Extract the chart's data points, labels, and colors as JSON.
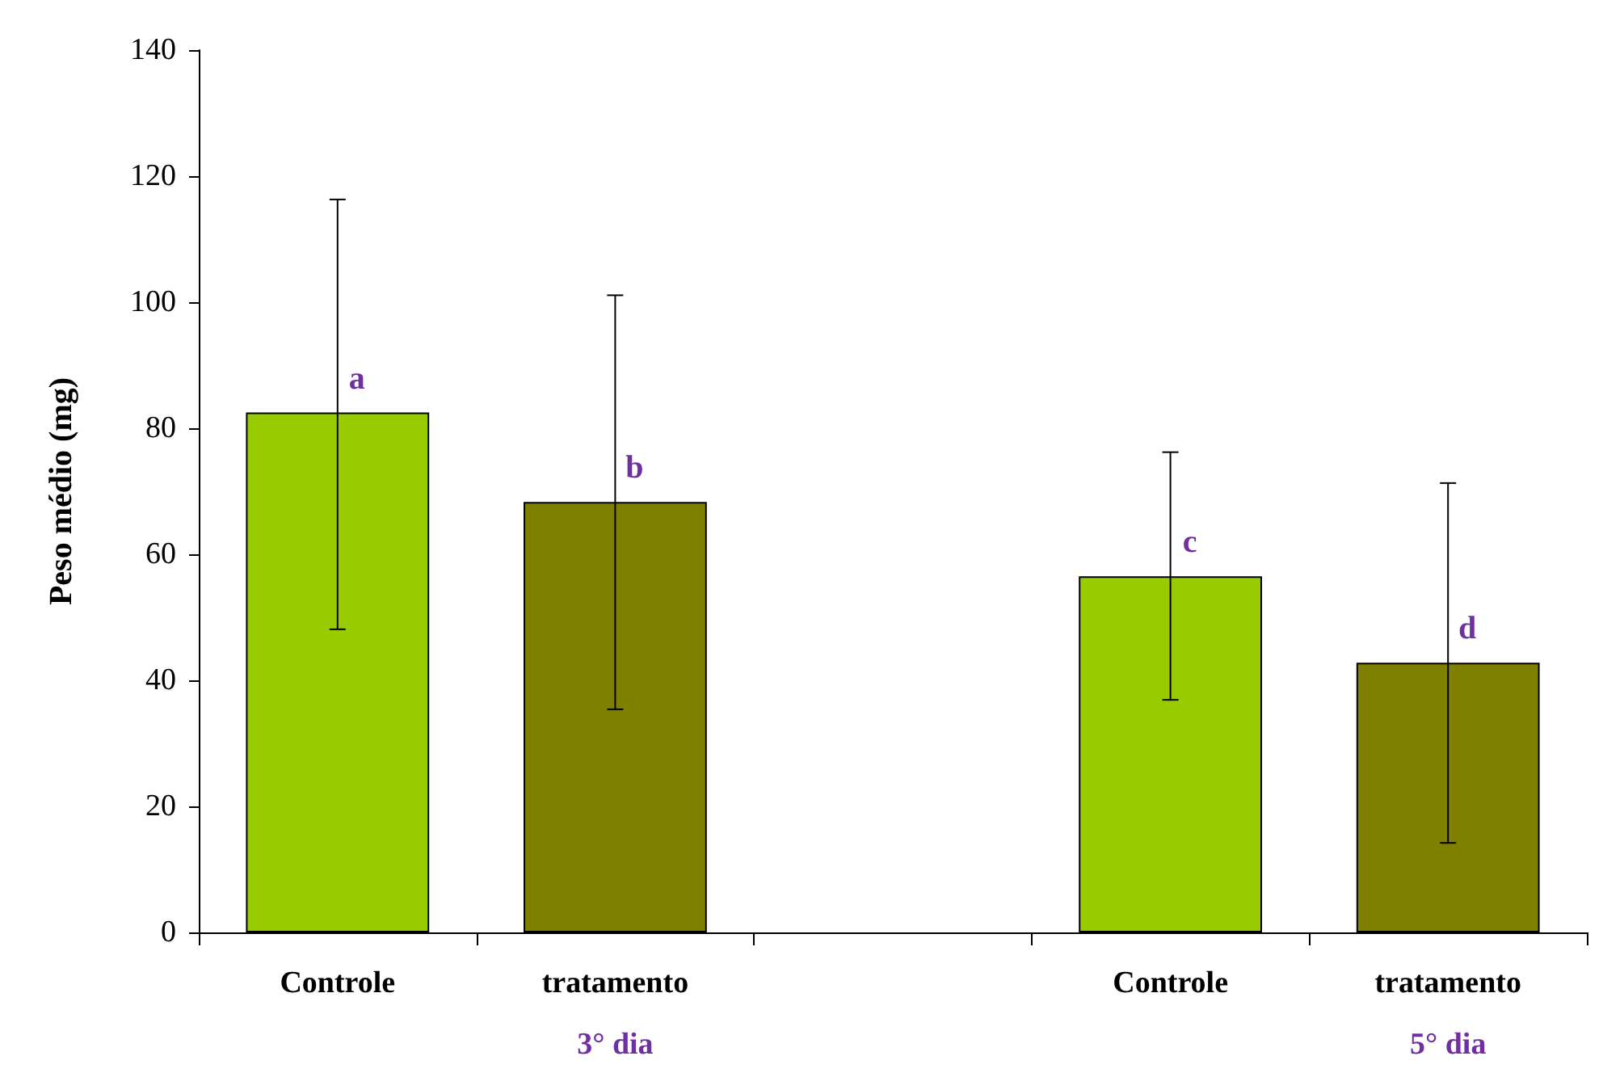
{
  "chart_data": {
    "type": "bar",
    "ylabel": "Peso médio (mg)",
    "categories": [
      "Controle",
      "tratamento",
      null,
      "Controle",
      "tratamento"
    ],
    "values": [
      82.5,
      68.3,
      null,
      56.5,
      42.8
    ],
    "colors": [
      "#99cc00",
      "#808000",
      null,
      "#99cc00",
      "#808000"
    ],
    "errors": [
      [
        48.1,
        116.3
      ],
      [
        35.4,
        101.1
      ],
      null,
      [
        36.9,
        76.2
      ],
      [
        14.2,
        71.3
      ]
    ],
    "value_labels": [
      "a",
      "b",
      null,
      "c",
      "d"
    ],
    "ylim": [
      0,
      140
    ],
    "yticks": [
      0,
      20,
      40,
      60,
      80,
      100,
      120,
      140
    ],
    "annotations": [
      "3° dia",
      "5° dia"
    ]
  }
}
